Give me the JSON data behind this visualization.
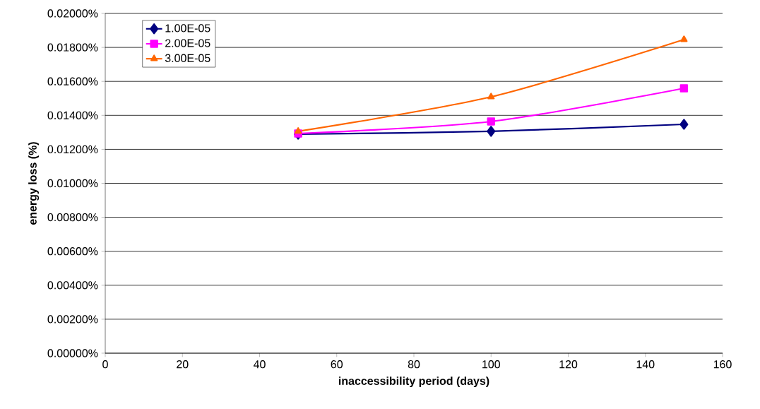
{
  "chart_data": {
    "type": "line",
    "xlabel": "inaccessibility period (days)",
    "ylabel": "energy loss (%)",
    "x": [
      50,
      100,
      150
    ],
    "series": [
      {
        "name": "1.00E-05",
        "color": "#000080",
        "marker": "diamond",
        "values": [
          0.01289,
          0.01306,
          0.01347
        ]
      },
      {
        "name": "2.00E-05",
        "color": "#ff00ff",
        "marker": "square",
        "values": [
          0.01293,
          0.01364,
          0.01559
        ]
      },
      {
        "name": "3.00E-05",
        "color": "#ff6600",
        "marker": "triangle",
        "values": [
          0.01306,
          0.01509,
          0.01846
        ]
      }
    ],
    "xlim": [
      0,
      160
    ],
    "xticks": [
      0,
      20,
      40,
      60,
      80,
      100,
      120,
      140,
      160
    ],
    "ylim": [
      0,
      0.02
    ],
    "yticks": [
      {
        "value": 0,
        "label": "0.00000%"
      },
      {
        "value": 0.002,
        "label": "0.00200%"
      },
      {
        "value": 0.004,
        "label": "0.00400%"
      },
      {
        "value": 0.006,
        "label": "0.00600%"
      },
      {
        "value": 0.008,
        "label": "0.00800%"
      },
      {
        "value": 0.01,
        "label": "0.01000%"
      },
      {
        "value": 0.012,
        "label": "0.01200%"
      },
      {
        "value": 0.014,
        "label": "0.01400%"
      },
      {
        "value": 0.016,
        "label": "0.01600%"
      },
      {
        "value": 0.018,
        "label": "0.01800%"
      },
      {
        "value": 0.02,
        "label": "0.02000%"
      }
    ],
    "grid": "y",
    "legend": "top left",
    "line_style": "solid"
  }
}
